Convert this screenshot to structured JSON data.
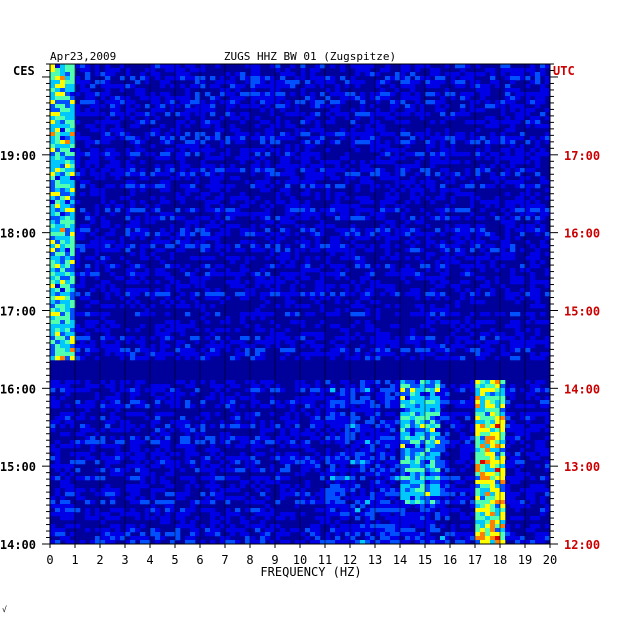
{
  "chart_data": {
    "type": "heatmap",
    "date_label": "Apr23,2009",
    "title": "ZUGS HHZ BW 01 (Zugspitze)",
    "xlabel": "FREQUENCY (HZ)",
    "xlim": [
      0,
      20
    ],
    "x_ticks": [
      "0",
      "1",
      "2",
      "3",
      "4",
      "5",
      "6",
      "7",
      "8",
      "9",
      "10",
      "11",
      "12",
      "13",
      "14",
      "15",
      "16",
      "17",
      "18",
      "19",
      "20"
    ],
    "left_axis_label": "CES",
    "right_axis_label": "UTC",
    "left_ticks": [
      "19:00",
      "18:00",
      "17:00",
      "16:00",
      "15:00",
      "14:00"
    ],
    "right_ticks": [
      "17:00",
      "16:00",
      "15:00",
      "14:00",
      "13:00",
      "12:00"
    ],
    "time_range_utc": [
      "12:00",
      "18:10"
    ],
    "colormap": [
      "#00009a",
      "#0000e6",
      "#0050ff",
      "#00c8ff",
      "#50ffb0",
      "#ffff00",
      "#ff8000",
      "#e00000"
    ],
    "notable_features": [
      {
        "description": "low-frequency energy band",
        "freq_hz": [
          0,
          1
        ],
        "utc": [
          14.2,
          18.2
        ]
      },
      {
        "description": "strong band",
        "freq_hz": [
          17,
          18.2
        ],
        "utc": [
          12.0,
          14.1
        ]
      },
      {
        "description": "moderate band",
        "freq_hz": [
          14,
          15.5
        ],
        "utc": [
          12.5,
          14.1
        ]
      },
      {
        "description": "quiet interval",
        "freq_hz": [
          0,
          20
        ],
        "utc": [
          14.1,
          14.35
        ]
      }
    ]
  },
  "footer_mark": "√"
}
